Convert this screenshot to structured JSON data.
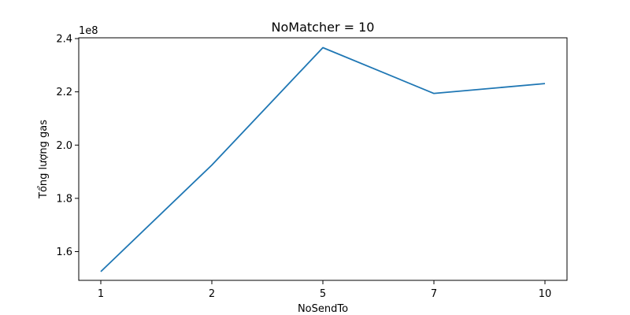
{
  "chart_data": {
    "type": "line",
    "title": "NoMatcher = 10",
    "xlabel": "NoSendTo",
    "ylabel": "Tổng lượng gas",
    "y_offset_label": "1e8",
    "categories": [
      "1",
      "2",
      "5",
      "7",
      "10"
    ],
    "series": [
      {
        "values": [
          152500000,
          192500000,
          236600000,
          219400000,
          223100000
        ],
        "color": "#1f77b4"
      }
    ],
    "ylim": [
      149200000,
      240300000
    ],
    "y_ticks": [
      160000000,
      180000000,
      200000000,
      220000000,
      240000000
    ],
    "y_tick_labels": [
      "1.6",
      "1.8",
      "2.0",
      "2.2",
      "2.4"
    ],
    "grid": false,
    "legend": "none"
  }
}
